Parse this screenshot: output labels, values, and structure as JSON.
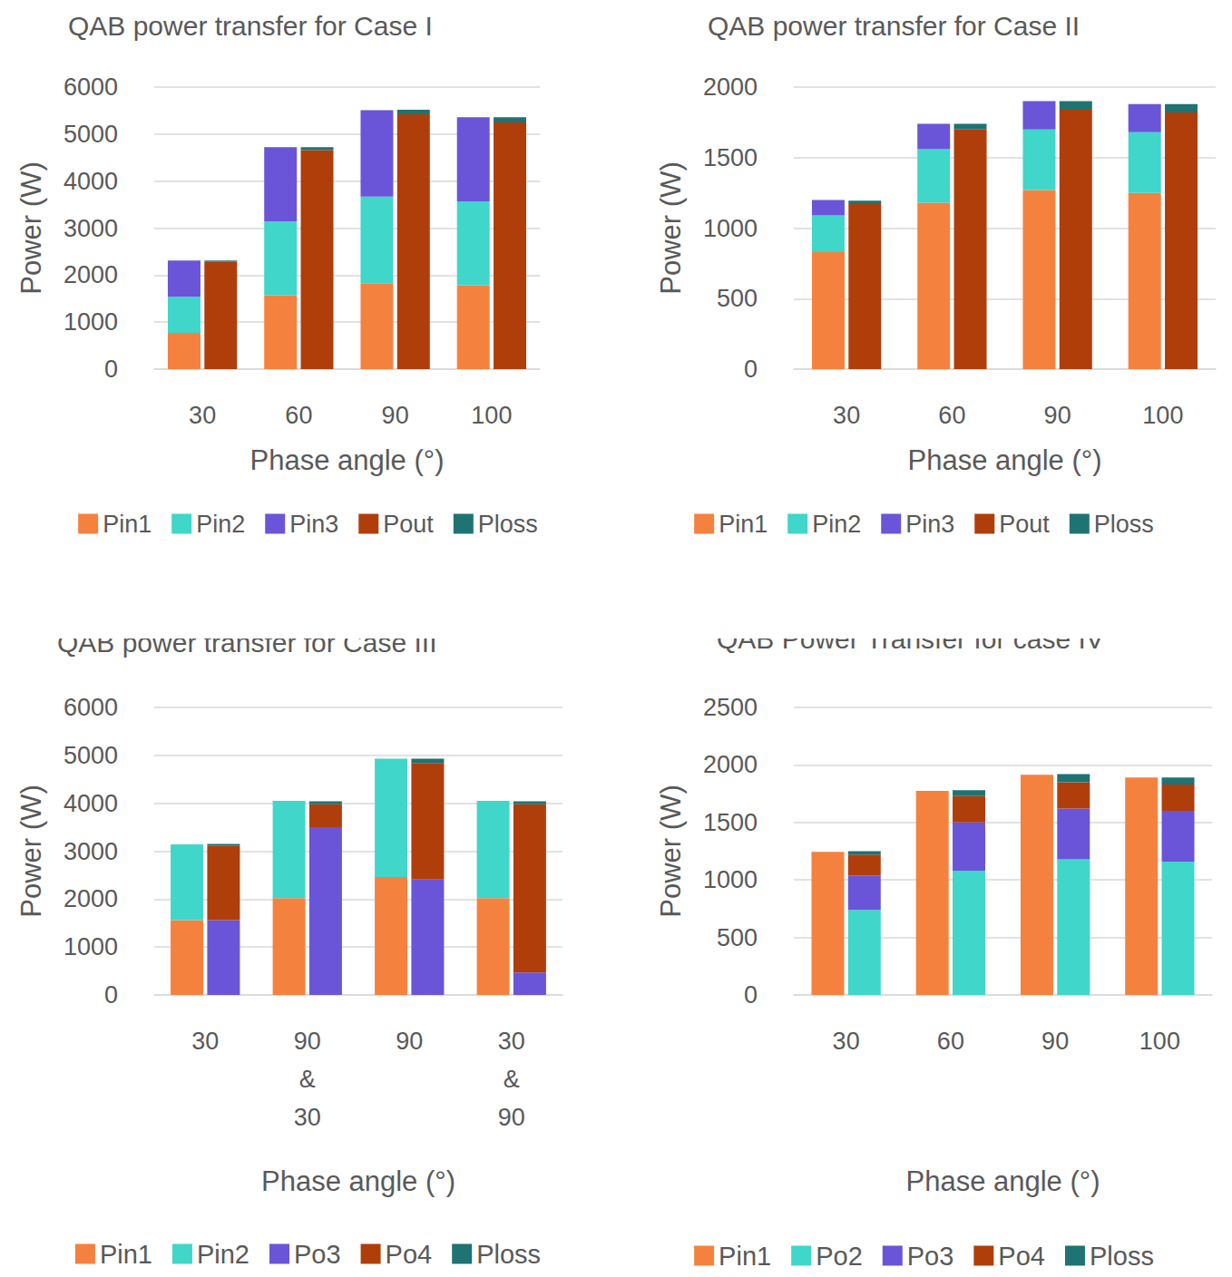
{
  "chart_data": [
    {
      "type": "bar",
      "title": "QAB power transfer for Case I",
      "x_label": "Phase angle (°)",
      "y_label": "Power (W)",
      "categories": [
        "30",
        "60",
        "90",
        "100"
      ],
      "stacked": true,
      "grid": true,
      "legend": "bottom",
      "ylim": [
        0,
        6000
      ],
      "yticks": [
        0,
        1000,
        2000,
        3000,
        4000,
        5000,
        6000
      ],
      "series": [
        [
          {
            "name": "Pin1",
            "color": "#F5813F",
            "values": [
              770,
              1570,
              1830,
              1780
            ]
          },
          {
            "name": "Pin2",
            "color": "#40D6CA",
            "values": [
              770,
              1570,
              1840,
              1790
            ]
          },
          {
            "name": "Pin3",
            "color": "#6A55D8",
            "values": [
              770,
              1580,
              1840,
              1790
            ]
          }
        ],
        [
          {
            "name": "Pout",
            "color": "#B03E0B",
            "values": [
              2280,
              4660,
              5420,
              5250
            ]
          },
          {
            "name": "Ploss",
            "color": "#1F7373",
            "values": [
              30,
              60,
              100,
              110
            ]
          }
        ]
      ]
    },
    {
      "type": "bar",
      "title": "QAB power transfer for Case II",
      "x_label": "Phase angle (°)",
      "y_label": "Power (W)",
      "categories": [
        "30",
        "60",
        "90",
        "100"
      ],
      "stacked": true,
      "grid": true,
      "legend": "bottom",
      "ylim": [
        0,
        2000
      ],
      "yticks": [
        0,
        500,
        1000,
        1500,
        2000
      ],
      "series": [
        [
          {
            "name": "Pin1",
            "color": "#F5813F",
            "values": [
              830,
              1180,
              1270,
              1250
            ]
          },
          {
            "name": "Pin2",
            "color": "#40D6CA",
            "values": [
              260,
              380,
              430,
              430
            ]
          },
          {
            "name": "Pin3",
            "color": "#6A55D8",
            "values": [
              110,
              180,
              200,
              200
            ]
          }
        ],
        [
          {
            "name": "Pout",
            "color": "#B03E0B",
            "values": [
              1170,
              1700,
              1840,
              1820
            ]
          },
          {
            "name": "Ploss",
            "color": "#1F7373",
            "values": [
              25,
              40,
              60,
              60
            ]
          }
        ]
      ]
    },
    {
      "type": "bar",
      "title": "QAB power transfer for Case III",
      "x_label": "Phase angle (°)",
      "y_label": "Power (W)",
      "categories": [
        "30",
        "90\n&\n30",
        "90",
        "30\n&\n90"
      ],
      "stacked": true,
      "grid": true,
      "legend": "bottom",
      "ylim": [
        0,
        6000
      ],
      "yticks": [
        0,
        1000,
        2000,
        3000,
        4000,
        5000,
        6000
      ],
      "series": [
        [
          {
            "name": "Pin1",
            "color": "#F5813F",
            "values": [
              1560,
              2020,
              2460,
              2020
            ]
          },
          {
            "name": "Pin2",
            "color": "#40D6CA",
            "values": [
              1580,
              2030,
              2470,
              2030
            ]
          }
        ],
        [
          {
            "name": "Po3",
            "color": "#6A55D8",
            "values": [
              1560,
              3500,
              2410,
              470
            ]
          },
          {
            "name": "Po4",
            "color": "#B03E0B",
            "values": [
              1560,
              480,
              2430,
              3510
            ]
          },
          {
            "name": "Ploss",
            "color": "#1F7373",
            "values": [
              30,
              60,
              90,
              60
            ]
          }
        ]
      ]
    },
    {
      "type": "bar",
      "title": "QAB Power Transfer for case IV",
      "x_label": "Phase angle (°)",
      "y_label": "Power (W)",
      "categories": [
        "30",
        "60",
        "90",
        "100"
      ],
      "stacked": true,
      "grid": true,
      "legend": "bottom",
      "ylim": [
        0,
        2500
      ],
      "yticks": [
        0,
        500,
        1000,
        1500,
        2000,
        2500
      ],
      "series": [
        [
          {
            "name": "Pin1",
            "color": "#F5813F",
            "values": [
              1245,
              1775,
              1915,
              1890
            ]
          }
        ],
        [
          {
            "name": "Po2",
            "color": "#40D6CA",
            "values": [
              740,
              1080,
              1180,
              1160
            ]
          },
          {
            "name": "Po3",
            "color": "#6A55D8",
            "values": [
              300,
              420,
              440,
              440
            ]
          },
          {
            "name": "Po4",
            "color": "#B03E0B",
            "values": [
              180,
              230,
              230,
              230
            ]
          },
          {
            "name": "Ploss",
            "color": "#1F7373",
            "values": [
              30,
              50,
              70,
              60
            ]
          }
        ]
      ]
    }
  ]
}
